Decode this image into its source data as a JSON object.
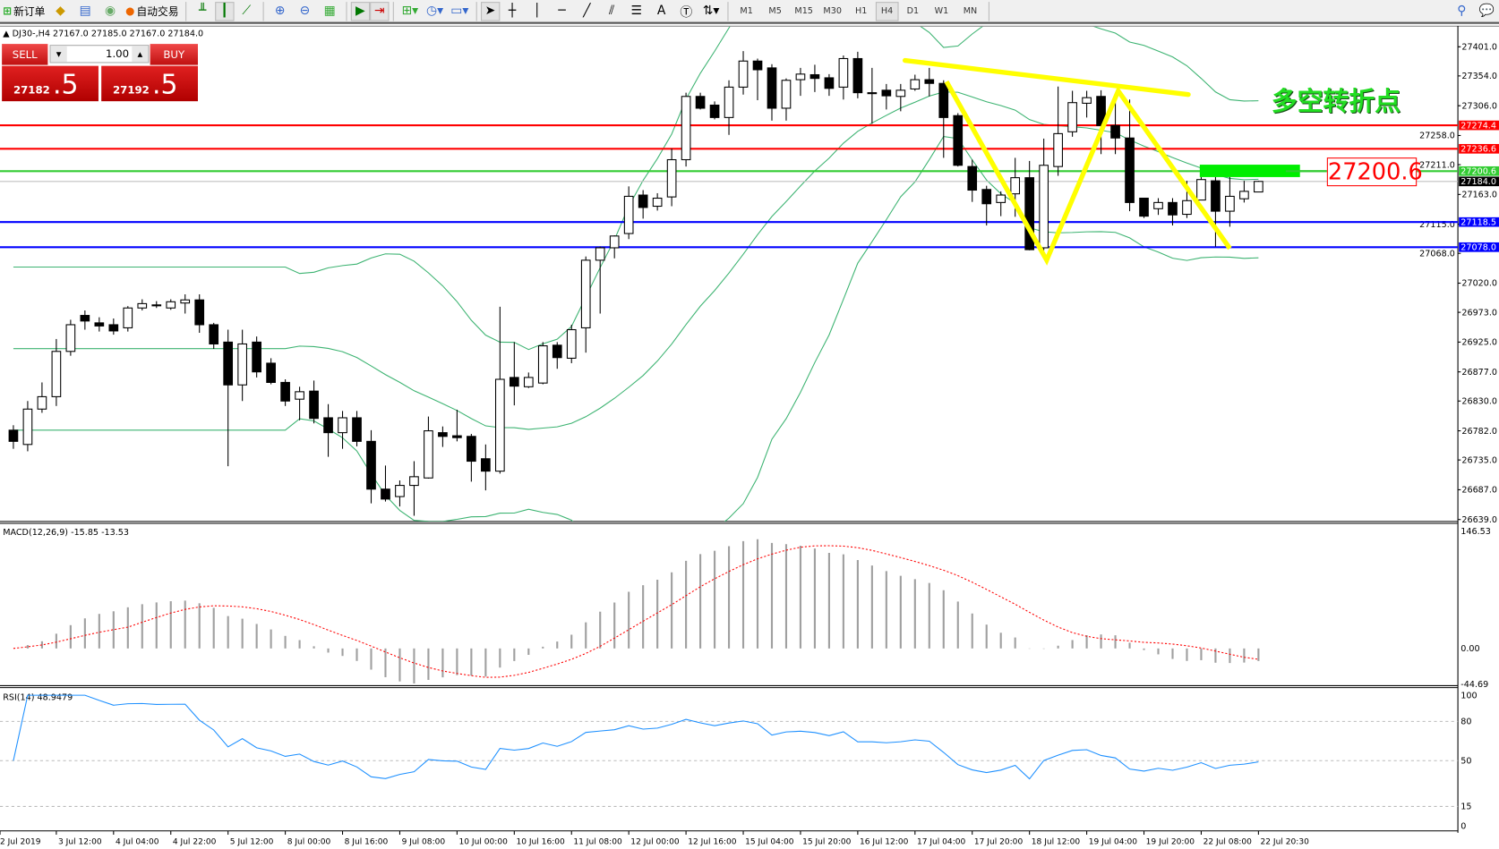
{
  "toolbar": {
    "new_order": "新订单",
    "auto_trading": "自动交易",
    "timeframes": [
      "M1",
      "M5",
      "M15",
      "M30",
      "H1",
      "H4",
      "D1",
      "W1",
      "MN"
    ],
    "active_timeframe": "H4"
  },
  "chart_header": "DJ30-,H4  27167.0 27185.0 27167.0 27184.0",
  "trade_panel": {
    "sell_label": "SELL",
    "buy_label": "BUY",
    "volume": "1.00",
    "sell_big": "27182",
    "sell_small": ".5",
    "buy_big": "27192",
    "buy_small": ".5"
  },
  "annotation_text": "多空转折点",
  "price_label_box": "27200.6",
  "colors": {
    "bull": "#ffffff",
    "bear": "#000000",
    "bands": "#3cb371",
    "trendlines": "#ffff00",
    "zone": "#00ee00",
    "macd_signal": "#ff0000",
    "rsi": "#1e90ff"
  },
  "chart_data": [
    {
      "type": "candlestick",
      "symbol": "DJ30-",
      "timeframe": "H4",
      "ylim": [
        26639,
        27420
      ],
      "price_ticks": [
        "27401.0",
        "27354.0",
        "27306.0",
        "27258.0",
        "27211.0",
        "27163.0",
        "27115.0",
        "27068.0",
        "27020.0",
        "26973.0",
        "26925.0",
        "26877.0",
        "26830.0",
        "26782.0",
        "26735.0",
        "26687.0",
        "26639.0"
      ],
      "time_labels": [
        "2 Jul 2019",
        "3 Jul 12:00",
        "4 Jul 04:00",
        "4 Jul 22:00",
        "5 Jul 12:00",
        "8 Jul 00:00",
        "8 Jul 16:00",
        "9 Jul 08:00",
        "10 Jul 00:00",
        "10 Jul 16:00",
        "11 Jul 08:00",
        "12 Jul 00:00",
        "12 Jul 16:00",
        "15 Jul 04:00",
        "15 Jul 20:00",
        "16 Jul 12:00",
        "17 Jul 04:00",
        "17 Jul 20:00",
        "18 Jul 12:00",
        "19 Jul 04:00",
        "19 Jul 20:00",
        "22 Jul 08:00",
        "22 Jul 20:30"
      ],
      "ohlc": [
        [
          26783,
          26791,
          26753,
          26765
        ],
        [
          26760,
          26830,
          26749,
          26817
        ],
        [
          26817,
          26860,
          26811,
          26837
        ],
        [
          26837,
          26930,
          26822,
          26910
        ],
        [
          26910,
          26961,
          26903,
          26953
        ],
        [
          26968,
          26976,
          26945,
          26959
        ],
        [
          26956,
          26965,
          26942,
          26951
        ],
        [
          26953,
          26963,
          26937,
          26943
        ],
        [
          26948,
          26983,
          26942,
          26980
        ],
        [
          26980,
          26994,
          26976,
          26987
        ],
        [
          26985,
          26991,
          26980,
          26985
        ],
        [
          26980,
          26994,
          26977,
          26990
        ],
        [
          26988,
          27002,
          26971,
          26993
        ],
        [
          26993,
          27002,
          26940,
          26953
        ],
        [
          26953,
          26956,
          26914,
          26922
        ],
        [
          26925,
          26945,
          26725,
          26856
        ],
        [
          26856,
          26945,
          26830,
          26922
        ],
        [
          26925,
          26934,
          26868,
          26877
        ],
        [
          26891,
          26899,
          26857,
          26860
        ],
        [
          26860,
          26865,
          26822,
          26830
        ],
        [
          26833,
          26853,
          26799,
          26845
        ],
        [
          26846,
          26863,
          26794,
          26802
        ],
        [
          26803,
          26825,
          26740,
          26779
        ],
        [
          26779,
          26814,
          26753,
          26803
        ],
        [
          26803,
          26814,
          26757,
          26765
        ],
        [
          26765,
          26783,
          26665,
          26688
        ],
        [
          26688,
          26726,
          26668,
          26672
        ],
        [
          26676,
          26702,
          26660,
          26694
        ],
        [
          26694,
          26733,
          26645,
          26708
        ],
        [
          26706,
          26805,
          26705,
          26782
        ],
        [
          26779,
          26789,
          26756,
          26773
        ],
        [
          26774,
          26816,
          26765,
          26771
        ],
        [
          26773,
          26777,
          26700,
          26733
        ],
        [
          26737,
          26760,
          26686,
          26717
        ],
        [
          26717,
          26982,
          26713,
          26865
        ],
        [
          26868,
          26925,
          26823,
          26854
        ],
        [
          26853,
          26876,
          26851,
          26868
        ],
        [
          26859,
          26925,
          26857,
          26919
        ],
        [
          26920,
          26925,
          26882,
          26900
        ],
        [
          26899,
          26953,
          26891,
          26945
        ],
        [
          26948,
          27063,
          26908,
          27057
        ],
        [
          27057,
          27079,
          26971,
          27077
        ],
        [
          27077,
          27097,
          27060,
          27096
        ],
        [
          27100,
          27176,
          27091,
          27160
        ],
        [
          27162,
          27170,
          27124,
          27142
        ],
        [
          27144,
          27165,
          27137,
          27157
        ],
        [
          27159,
          27237,
          27144,
          27219
        ],
        [
          27219,
          27327,
          27208,
          27321
        ],
        [
          27321,
          27327,
          27300,
          27302
        ],
        [
          27307,
          27313,
          27284,
          27287
        ],
        [
          27287,
          27347,
          27259,
          27336
        ],
        [
          27336,
          27394,
          27324,
          27378
        ],
        [
          27378,
          27382,
          27315,
          27364
        ],
        [
          27367,
          27373,
          27282,
          27302
        ],
        [
          27302,
          27350,
          27282,
          27347
        ],
        [
          27348,
          27367,
          27322,
          27357
        ],
        [
          27356,
          27372,
          27328,
          27350
        ],
        [
          27351,
          27357,
          27322,
          27334
        ],
        [
          27336,
          27387,
          27316,
          27382
        ],
        [
          27382,
          27393,
          27318,
          27327
        ],
        [
          27327,
          27367,
          27277,
          27327
        ],
        [
          27331,
          27341,
          27300,
          27322
        ],
        [
          27321,
          27341,
          27297,
          27331
        ],
        [
          27333,
          27356,
          27330,
          27348
        ],
        [
          27348,
          27367,
          27321,
          27342
        ],
        [
          27342,
          27347,
          27222,
          27287
        ],
        [
          27290,
          27294,
          27208,
          27210
        ],
        [
          27208,
          27219,
          27151,
          27170
        ],
        [
          27171,
          27177,
          27113,
          27148
        ],
        [
          27150,
          27168,
          27128,
          27162
        ],
        [
          27164,
          27222,
          27127,
          27190
        ],
        [
          27190,
          27217,
          27073,
          27074
        ],
        [
          27077,
          27253,
          27073,
          27210
        ],
        [
          27208,
          27337,
          27193,
          27261
        ],
        [
          27264,
          27330,
          27256,
          27311
        ],
        [
          27310,
          27330,
          27287,
          27319
        ],
        [
          27321,
          27331,
          27228,
          27274
        ],
        [
          27274,
          27327,
          27228,
          27254
        ],
        [
          27254,
          27316,
          27136,
          27150
        ],
        [
          27157,
          27157,
          27125,
          27128
        ],
        [
          27140,
          27157,
          27130,
          27150
        ],
        [
          27150,
          27157,
          27113,
          27130
        ],
        [
          27131,
          27185,
          27125,
          27153
        ],
        [
          27154,
          27191,
          27154,
          27187
        ],
        [
          27185,
          27191,
          27079,
          27136
        ],
        [
          27136,
          27191,
          27111,
          27160
        ],
        [
          27156,
          27185,
          27150,
          27168
        ],
        [
          27167,
          27185,
          27167,
          27184
        ]
      ],
      "indicators": [
        "Bollinger Bands"
      ],
      "hlines": [
        {
          "price": 27274.4,
          "label": "27274.4",
          "color": "#ff0000"
        },
        {
          "price": 27236.6,
          "label": "27236.6",
          "color": "#ff0000"
        },
        {
          "price": 27200.6,
          "label": "27200.6",
          "color": "#33cc33"
        },
        {
          "price": 27184.0,
          "label": "27184.0",
          "color": "#000000",
          "line": "#c0c0c0"
        },
        {
          "price": 27118.5,
          "label": "27118.5",
          "color": "#0000ff"
        },
        {
          "price": 27078.0,
          "label": "27078.0",
          "color": "#0000ff"
        }
      ],
      "drawings": {
        "trendline": [
          [
            62.3,
            27379
          ],
          [
            82.1,
            27324
          ]
        ],
        "w_pattern": [
          [
            65.2,
            27345
          ],
          [
            72.2,
            27057
          ],
          [
            77.2,
            27330
          ],
          [
            85.0,
            27076
          ]
        ],
        "zone": {
          "from_bar": 82.9,
          "to_bar": 89.9,
          "top": 27211,
          "bottom": 27191
        }
      }
    },
    {
      "type": "histogram+line",
      "title": "MACD(12,26,9) -15.85 -13.53",
      "ylim": [
        -44.69,
        146.53
      ],
      "ticks": [
        "146.53",
        "0.00",
        "-44.69"
      ]
    },
    {
      "type": "line",
      "title": "RSI(14) 48.9479",
      "ylim": [
        0,
        100
      ],
      "ticks": [
        "100",
        "80",
        "50",
        "15",
        "0"
      ],
      "levels": [
        80,
        50,
        15
      ]
    }
  ]
}
